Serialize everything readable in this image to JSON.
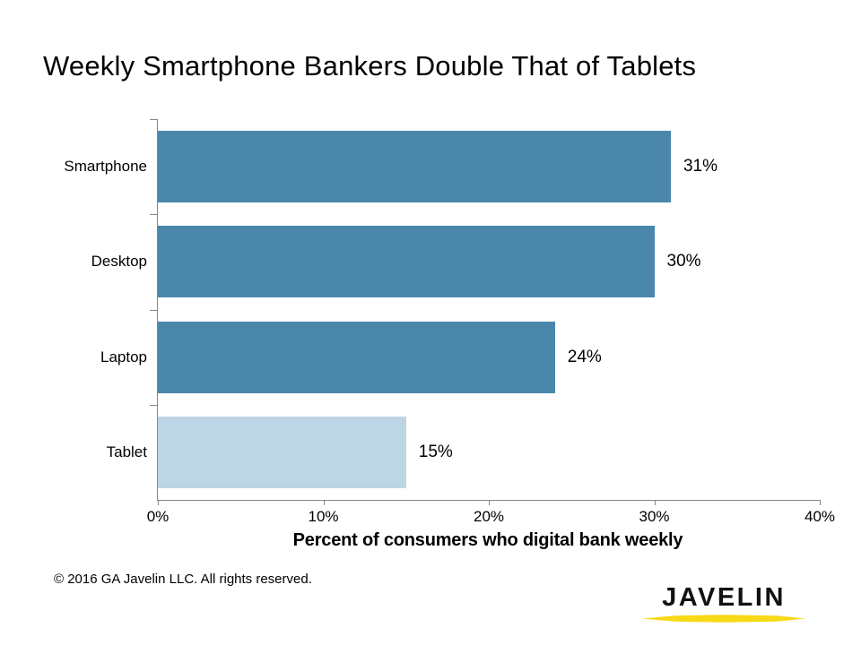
{
  "slide": {
    "title": "Weekly Smartphone Bankers Double That of Tablets",
    "footer": {
      "copyright": "© 2016 GA Javelin LLC. All rights reserved.",
      "logo_text": "JAVELIN",
      "logo_underline_color": "#F7D917"
    }
  },
  "chart_data": {
    "type": "bar",
    "orientation": "horizontal",
    "title": "Weekly Smartphone Bankers Double That of Tablets",
    "categories": [
      "Smartphone",
      "Desktop",
      "Laptop",
      "Tablet"
    ],
    "values": [
      31,
      30,
      24,
      15
    ],
    "value_labels": [
      "31%",
      "30%",
      "24%",
      "15%"
    ],
    "bar_colors": [
      "#4A87AB",
      "#4A87AB",
      "#4A87AB",
      "#BDD5E4"
    ],
    "xlabel": "Percent of consumers who digital bank weekly",
    "ylabel": "",
    "xlim": [
      0,
      40
    ],
    "x_ticks": [
      "0%",
      "10%",
      "20%",
      "30%",
      "40%"
    ],
    "grid": false,
    "legend": false,
    "data_label_position": "outside-end",
    "axis_color": "#868686"
  }
}
